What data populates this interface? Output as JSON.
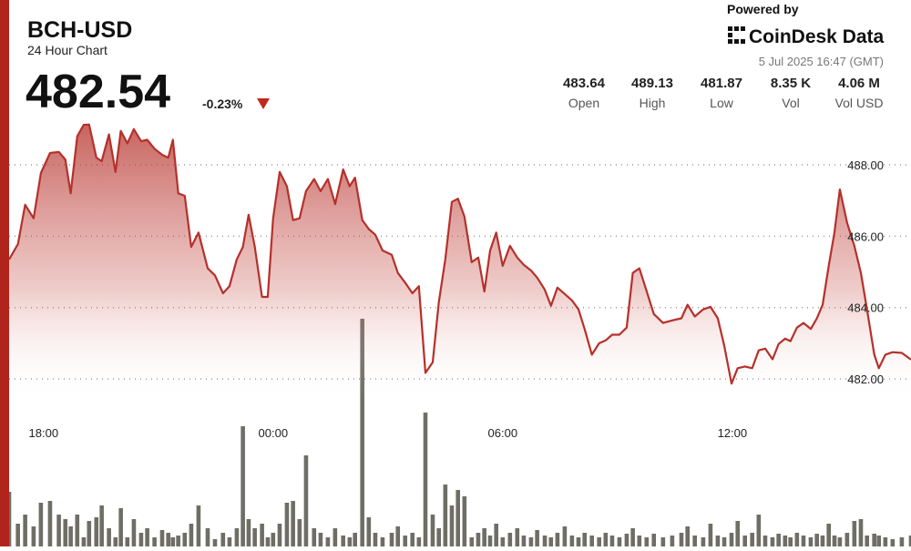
{
  "header": {
    "symbol": "BCH-USD",
    "subtitle": "24 Hour Chart",
    "price": "482.54",
    "change": "-0.23%",
    "powered_by": "Powered by",
    "brand": "CoinDesk Data",
    "timestamp": "5 Jul 2025 16:47 (GMT)",
    "stats": [
      {
        "value": "483.64",
        "label": "Open"
      },
      {
        "value": "489.13",
        "label": "High"
      },
      {
        "value": "481.87",
        "label": "Low"
      },
      {
        "value": "8.35 K",
        "label": "Vol"
      },
      {
        "value": "4.06 M",
        "label": "Vol USD"
      }
    ]
  },
  "chart_data": {
    "type": "line",
    "color": "#b5302a",
    "volume_color": "#6e6e66",
    "x": [
      17.1,
      17.33,
      17.52,
      17.74,
      17.93,
      18.17,
      18.4,
      18.57,
      18.71,
      18.88,
      19.05,
      19.19,
      19.38,
      19.52,
      19.71,
      19.88,
      20.02,
      20.19,
      20.36,
      20.55,
      20.71,
      20.9,
      21.1,
      21.26,
      21.38,
      21.52,
      21.69,
      21.86,
      22.05,
      22.29,
      22.48,
      22.69,
      22.86,
      23.05,
      23.21,
      23.36,
      23.52,
      23.71,
      23.86,
      24.0,
      24.17,
      24.36,
      24.52,
      24.69,
      24.86,
      25.07,
      25.24,
      25.43,
      25.62,
      25.83,
      26.0,
      26.14,
      26.33,
      26.5,
      26.67,
      26.86,
      27.1,
      27.26,
      27.45,
      27.64,
      27.81,
      27.98,
      28.17,
      28.33,
      28.5,
      28.67,
      28.83,
      29.0,
      29.19,
      29.36,
      29.52,
      29.67,
      29.83,
      30.0,
      30.19,
      30.38,
      30.55,
      30.74,
      30.9,
      31.1,
      31.26,
      31.43,
      31.62,
      31.81,
      31.98,
      32.14,
      32.33,
      32.52,
      32.69,
      32.86,
      33.05,
      33.24,
      33.4,
      33.57,
      33.76,
      33.95,
      34.19,
      34.43,
      34.67,
      34.83,
      35.02,
      35.24,
      35.43,
      35.62,
      35.79,
      35.98,
      36.14,
      36.33,
      36.52,
      36.69,
      36.86,
      37.05,
      37.21,
      37.38,
      37.52,
      37.69,
      37.86,
      38.05,
      38.21,
      38.36,
      38.52,
      38.67,
      38.81,
      39.0,
      39.19,
      39.36,
      39.52,
      39.71,
      39.83,
      40.0,
      40.19,
      40.43,
      40.67
    ],
    "series": [
      {
        "values": [
          485.35,
          485.78,
          486.88,
          486.5,
          487.77,
          488.33,
          488.36,
          488.15,
          487.2,
          488.8,
          489.12,
          489.13,
          488.2,
          488.1,
          488.85,
          487.8,
          488.95,
          488.6,
          489.0,
          488.66,
          488.7,
          488.45,
          488.28,
          488.2,
          488.7,
          487.2,
          487.13,
          485.7,
          486.1,
          485.1,
          484.9,
          484.4,
          484.6,
          485.35,
          485.7,
          486.6,
          485.7,
          484.3,
          484.3,
          486.5,
          487.8,
          487.4,
          486.45,
          486.5,
          487.26,
          487.6,
          487.26,
          487.6,
          486.9,
          487.87,
          487.4,
          487.64,
          486.45,
          486.2,
          486.04,
          485.6,
          485.48,
          484.97,
          484.7,
          484.4,
          484.6,
          482.17,
          482.47,
          484.15,
          485.35,
          486.96,
          487.05,
          486.55,
          485.27,
          485.4,
          484.45,
          485.6,
          486.1,
          485.17,
          485.73,
          485.4,
          485.2,
          485.04,
          484.84,
          484.5,
          484.05,
          484.56,
          484.38,
          484.2,
          483.95,
          483.4,
          482.68,
          483.0,
          483.08,
          483.24,
          483.24,
          483.44,
          484.97,
          485.1,
          484.46,
          483.82,
          483.57,
          483.64,
          483.7,
          484.08,
          483.75,
          483.95,
          484.02,
          483.7,
          482.93,
          481.87,
          482.3,
          482.35,
          482.3,
          482.8,
          482.85,
          482.55,
          482.98,
          483.13,
          483.06,
          483.44,
          483.57,
          483.4,
          483.7,
          484.08,
          485.17,
          486.11,
          487.31,
          486.37,
          485.73,
          484.97,
          483.95,
          482.68,
          482.3,
          482.68,
          482.75,
          482.73,
          482.54
        ]
      },
      {
        "axis": "y2",
        "values": [
          60,
          25,
          35,
          22,
          48,
          50,
          35,
          30,
          22,
          35,
          10,
          28,
          32,
          45,
          20,
          10,
          42,
          10,
          30,
          15,
          20,
          10,
          18,
          15,
          10,
          12,
          15,
          25,
          45,
          20,
          8,
          15,
          10,
          20,
          132,
          30,
          20,
          25,
          10,
          15,
          25,
          48,
          50,
          30,
          100,
          20,
          15,
          10,
          20,
          12,
          10,
          15,
          250,
          32,
          15,
          10,
          15,
          22,
          12,
          15,
          10,
          147,
          35,
          20,
          68,
          45,
          62,
          55,
          10,
          15,
          20,
          12,
          25,
          10,
          15,
          20,
          12,
          10,
          18,
          12,
          10,
          15,
          22,
          12,
          10,
          15,
          12,
          10,
          15,
          12,
          10,
          14,
          20,
          12,
          10,
          14,
          10,
          12,
          15,
          22,
          12,
          10,
          25,
          12,
          10,
          15,
          28,
          12,
          15,
          35,
          12,
          10,
          14,
          12,
          10,
          15,
          12,
          10,
          14,
          12,
          25,
          12,
          10,
          15,
          28,
          30,
          12,
          14,
          12,
          10,
          8,
          10,
          12
        ]
      }
    ],
    "xlim": [
      17.1,
      40.67
    ],
    "xticks": [
      {
        "value": 18,
        "label": "18:00"
      },
      {
        "value": 24,
        "label": "00:00"
      },
      {
        "value": 30,
        "label": "06:00"
      },
      {
        "value": 36,
        "label": "12:00"
      }
    ],
    "ylim": [
      481.39,
      489.3
    ],
    "yticks": [
      {
        "value": 482,
        "label": "482.00"
      },
      {
        "value": 484,
        "label": "484.00"
      },
      {
        "value": 486,
        "label": "486.00"
      },
      {
        "value": 488,
        "label": "488.00"
      }
    ],
    "y2lim": [
      0,
      250
    ],
    "grid": true
  }
}
